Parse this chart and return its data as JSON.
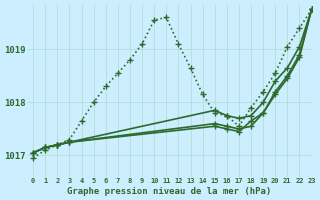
{
  "title": "Graphe pression niveau de la mer (hPa)",
  "bg_color": "#cceeff",
  "grid_color": "#aaddcc",
  "line_color": "#2d6a2d",
  "xlim": [
    -0.5,
    23
  ],
  "ylim": [
    1016.6,
    1019.85
  ],
  "xticks": [
    0,
    1,
    2,
    3,
    4,
    5,
    6,
    7,
    8,
    9,
    10,
    11,
    12,
    13,
    14,
    15,
    16,
    17,
    18,
    19,
    20,
    21,
    22,
    23
  ],
  "yticks": [
    1017,
    1018,
    1019
  ],
  "series": [
    {
      "x": [
        0,
        1,
        2,
        3,
        4,
        5,
        6,
        7,
        8,
        9,
        10,
        11,
        12,
        13,
        14,
        15,
        16,
        17,
        18,
        19,
        20,
        21,
        22,
        23
      ],
      "y": [
        1016.95,
        1017.1,
        1017.2,
        1017.3,
        1017.65,
        1018.0,
        1018.3,
        1018.55,
        1018.8,
        1019.1,
        1019.55,
        1019.6,
        1019.1,
        1018.65,
        1018.15,
        1017.8,
        1017.75,
        1017.55,
        1017.9,
        1018.2,
        1018.55,
        1019.05,
        1019.4,
        1019.75
      ],
      "linestyle": "dotted",
      "linewidth": 1.2,
      "marker": "+",
      "markersize": 5
    },
    {
      "x": [
        0,
        1,
        2,
        3,
        15,
        16,
        17,
        18,
        19,
        20,
        21,
        22,
        23
      ],
      "y": [
        1017.05,
        1017.15,
        1017.2,
        1017.25,
        1017.85,
        1017.75,
        1017.7,
        1017.75,
        1018.0,
        1018.4,
        1018.65,
        1019.05,
        1019.75
      ],
      "linestyle": "solid",
      "linewidth": 1.2,
      "marker": "+",
      "markersize": 5
    },
    {
      "x": [
        0,
        1,
        2,
        3,
        15,
        16,
        17,
        18,
        19,
        20,
        21,
        22,
        23
      ],
      "y": [
        1017.05,
        1017.15,
        1017.2,
        1017.25,
        1017.6,
        1017.55,
        1017.5,
        1017.55,
        1017.8,
        1018.15,
        1018.45,
        1018.85,
        1019.75
      ],
      "linestyle": "solid",
      "linewidth": 1.2,
      "marker": "+",
      "markersize": 5
    },
    {
      "x": [
        0,
        1,
        2,
        3,
        15,
        16,
        17,
        18,
        19,
        20,
        21,
        22,
        23
      ],
      "y": [
        1017.05,
        1017.15,
        1017.2,
        1017.25,
        1017.55,
        1017.5,
        1017.45,
        1017.65,
        1017.8,
        1018.2,
        1018.5,
        1018.9,
        1019.75
      ],
      "linestyle": "solid",
      "linewidth": 1.2,
      "marker": "+",
      "markersize": 5
    }
  ]
}
